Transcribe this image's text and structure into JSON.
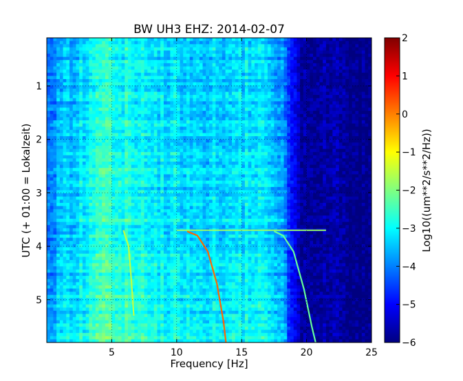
{
  "chart_data": {
    "type": "heatmap",
    "title": "BW UH3 EHZ: 2014-02-07",
    "xlabel": "Frequency [Hz]",
    "ylabel": "UTC (+ 01:00 = Lokalzeit)",
    "xlim": [
      0,
      25
    ],
    "ylim": [
      5.8,
      0.1
    ],
    "x_ticks": [
      "5",
      "10",
      "15",
      "20",
      "25"
    ],
    "x_tick_values": [
      5,
      10,
      15,
      20,
      25
    ],
    "y_ticks": [
      "1",
      "2",
      "3",
      "4",
      "5"
    ],
    "y_tick_values": [
      1,
      2,
      3,
      4,
      5
    ],
    "grid": true,
    "colormap": "jet",
    "colorbar": {
      "label": "Log10((um**2/s**2/Hz))",
      "range": [
        -6,
        2
      ],
      "ticks": [
        "2",
        "1",
        "0",
        "−1",
        "−2",
        "−3",
        "−4",
        "−5",
        "−6"
      ],
      "tick_values": [
        2,
        1,
        0,
        -1,
        -2,
        -3,
        -4,
        -5,
        -6
      ],
      "colors": [
        "#000080",
        "#0000ff",
        "#0080ff",
        "#00ffff",
        "#80ff80",
        "#ffff00",
        "#ff8000",
        "#ff0000",
        "#800000"
      ]
    },
    "background_level_by_frequency": [
      {
        "f": 0.0,
        "level": -4.1
      },
      {
        "f": 1.5,
        "level": -3.6
      },
      {
        "f": 3.0,
        "level": -3.2
      },
      {
        "f": 4.5,
        "level": -2.8
      },
      {
        "f": 6.0,
        "level": -3.0
      },
      {
        "f": 8.0,
        "level": -3.3
      },
      {
        "f": 10.0,
        "level": -3.4
      },
      {
        "f": 12.0,
        "level": -3.5
      },
      {
        "f": 14.0,
        "level": -3.4
      },
      {
        "f": 16.0,
        "level": -3.3
      },
      {
        "f": 17.5,
        "level": -3.6
      },
      {
        "f": 18.5,
        "level": -4.3
      },
      {
        "f": 19.0,
        "level": -5.2
      },
      {
        "f": 19.5,
        "level": -5.7
      },
      {
        "f": 25.0,
        "level": -5.9
      }
    ],
    "features": [
      {
        "name": "",
        "level": -1.5,
        "points": [
          [
            5.9,
            3.7
          ],
          [
            6.3,
            4.0
          ],
          [
            6.5,
            4.6
          ],
          [
            6.7,
            5.3
          ]
        ]
      },
      {
        "name": "",
        "level": 0.2,
        "points": [
          [
            10.8,
            3.72
          ],
          [
            11.6,
            3.8
          ],
          [
            12.4,
            4.1
          ],
          [
            13.1,
            4.7
          ],
          [
            13.6,
            5.4
          ],
          [
            13.8,
            5.8
          ]
        ]
      },
      {
        "name": "",
        "level": -2.2,
        "points": [
          [
            17.5,
            3.72
          ],
          [
            18.2,
            3.8
          ],
          [
            19.0,
            4.1
          ],
          [
            19.8,
            4.8
          ],
          [
            20.4,
            5.5
          ],
          [
            20.7,
            5.8
          ]
        ]
      }
    ],
    "horizontal_line": {
      "y": 3.7,
      "x_range": [
        10.0,
        21.5
      ],
      "level": -1.8
    }
  }
}
